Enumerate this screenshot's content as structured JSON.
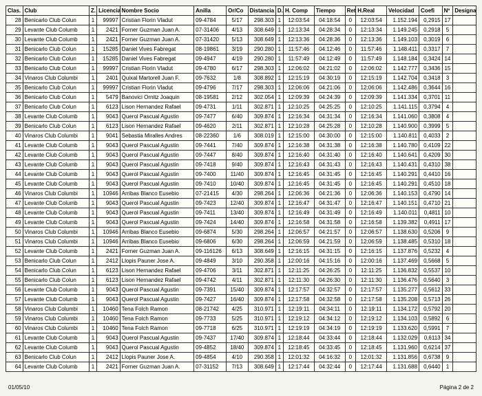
{
  "footer": {
    "left": "01/05/10",
    "right": "Página 2 de 2"
  },
  "headers": [
    "Clas.",
    "Club",
    "Z.",
    "Licencia",
    "Nombre Socio",
    "Anilla",
    "Or/Co",
    "Distancia",
    "D.",
    "H. Comp",
    "Tiempo",
    "Ret",
    "H.Real",
    "Velocidad",
    "Coefi",
    "Nº",
    "Designa"
  ],
  "rows": [
    [
      28,
      "Benicarlo Club Colun",
      1,
      99997,
      "Cristian Florin Vladut",
      "09-4784",
      "5/17",
      "298.303",
      1,
      "12:03:54",
      "04:18:54",
      0,
      "12:03:54",
      "1.152.194",
      "0,2915",
      17,
      ""
    ],
    [
      29,
      "Levante Club Columb",
      1,
      2421,
      "Forner Guzman Juan A.",
      "07-31406",
      "4/13",
      "308.649",
      1,
      "12:13:34",
      "04:28:34",
      0,
      "12:13:34",
      "1.149.245",
      "0,2918",
      5,
      ""
    ],
    [
      30,
      "Levante Club Columb",
      1,
      2421,
      "Forner Guzman Juan A.",
      "07-31420",
      "5/13",
      "308.649",
      1,
      "12:13:36",
      "04:28:36",
      0,
      "12:13:36",
      "1.149.103",
      "0,3019",
      6,
      ""
    ],
    [
      31,
      "Benicarlo Club Colun",
      1,
      15285,
      "Daniel Vives Fabregat",
      "08-19861",
      "3/19",
      "290.280",
      1,
      "11:57:46",
      "04:12:46",
      0,
      "11:57:46",
      "1.148.411",
      "0,3317",
      7,
      ""
    ],
    [
      32,
      "Benicarlo Club Colun",
      1,
      15285,
      "Daniel Vives Fabregat",
      "09-4947",
      "4/19",
      "290.280",
      1,
      "11:57:49",
      "04:12:49",
      0,
      "11:57:49",
      "1.148.184",
      "0,3424",
      14,
      ""
    ],
    [
      33,
      "Benicarlo Club Colun",
      1,
      99997,
      "Cristian Florin Vladut",
      "09-4780",
      "6/17",
      "298.303",
      1,
      "12:06:02",
      "04:21:02",
      0,
      "12:06:02",
      "1.142.777",
      "0,3436",
      15,
      ""
    ],
    [
      34,
      "Vinaros Club Columbi",
      1,
      2401,
      "Quixal Martorell Juan F.",
      "09-7632",
      "1/8",
      "308.892",
      1,
      "12:15:19",
      "04:30:19",
      0,
      "12:15:19",
      "1.142.704",
      "0,3418",
      3,
      ""
    ],
    [
      35,
      "Benicarlo Club Colun",
      1,
      99997,
      "Cristian Florin Vladut",
      "09-4796",
      "7/17",
      "298.303",
      1,
      "12:06:06",
      "04:21:06",
      0,
      "12:06:06",
      "1.142.486",
      "0,3644",
      16,
      ""
    ],
    [
      36,
      "Benicarlo Club Colun",
      1,
      5479,
      "Banovici Ornitz Joaquin",
      "08-19581",
      "2/12",
      "302.054",
      1,
      "12:09:39",
      "04:24:39",
      0,
      "12:09:39",
      "1.141.334",
      "0,3701",
      11,
      ""
    ],
    [
      37,
      "Benicarlo Club Colun",
      1,
      6123,
      "Lison Hernandez Rafael",
      "09-4731",
      "1/11",
      "302.871",
      1,
      "12:10:25",
      "04:25:25",
      0,
      "12:10:25",
      "1.141.115",
      "0,3794",
      4,
      ""
    ],
    [
      38,
      "Levante Club Columb",
      1,
      9043,
      "Querol Pascual Agustin",
      "09-7477",
      "6/40",
      "309.874",
      1,
      "12:16:34",
      "04:31:34",
      0,
      "12:16:34",
      "1.141.060",
      "0,3808",
      4,
      ""
    ],
    [
      39,
      "Benicarlo Club Colun",
      1,
      6123,
      "Lison Hernandez Rafael",
      "09-4620",
      "2/11",
      "302.871",
      1,
      "12:10:28",
      "04:25:28",
      0,
      "12:10:28",
      "1.140.900",
      "0,3999",
      5,
      ""
    ],
    [
      40,
      "Vinaros Club Columbi",
      1,
      9041,
      "Sebastia Miralles Andres",
      "08-22360",
      "1/6",
      "308.019",
      1,
      "12:15:00",
      "04:30:00",
      0,
      "12:15:00",
      "1.140.811",
      "0,4033",
      2,
      ""
    ],
    [
      41,
      "Levante Club Columb",
      1,
      9043,
      "Querol Pascual Agustin",
      "09-7441",
      "7/40",
      "309.874",
      1,
      "12:16:38",
      "04:31:38",
      0,
      "12:16:38",
      "1.140.780",
      "0,4109",
      22,
      ""
    ],
    [
      42,
      "Levante Club Columb",
      1,
      9043,
      "Querol Pascual Agustin",
      "09-7447",
      "8/40",
      "309.874",
      1,
      "12:16:40",
      "04:31:40",
      0,
      "12:16:40",
      "1.140.641",
      "0,4209",
      30,
      ""
    ],
    [
      43,
      "Levante Club Columb",
      1,
      9043,
      "Querol Pascual Agustin",
      "09-7418",
      "9/40",
      "309.874",
      1,
      "12:16:43",
      "04:31:43",
      0,
      "12:16:43",
      "1.140.431",
      "0,4310",
      38,
      ""
    ],
    [
      44,
      "Levante Club Columb",
      1,
      9043,
      "Querol Pascual Agustin",
      "09-7400",
      "11/40",
      "309.874",
      1,
      "12:16:45",
      "04:31:45",
      0,
      "12:16:45",
      "1.140.291",
      "0,4410",
      16,
      ""
    ],
    [
      45,
      "Levante Club Columb",
      1,
      9043,
      "Querol Pascual Agustin",
      "09-7410",
      "10/40",
      "309.874",
      1,
      "12:16:45",
      "04:31:45",
      0,
      "12:16:45",
      "1.140.291",
      "0,4510",
      18,
      ""
    ],
    [
      46,
      "Vinaros Club Columbi",
      1,
      10946,
      "Arribas Blanco Eusebio",
      "07-21415",
      "4/30",
      "298.264",
      1,
      "12:06:36",
      "04:21:36",
      0,
      "12:06:36",
      "1.140.153",
      "0,4790",
      14,
      ""
    ],
    [
      47,
      "Levante Club Columb",
      1,
      9043,
      "Querol Pascual Agustin",
      "09-7423",
      "12/40",
      "309.874",
      1,
      "12:16:47",
      "04:31:47",
      0,
      "12:16:47",
      "1.140.151",
      "0,4710",
      21,
      ""
    ],
    [
      48,
      "Levante Club Columb",
      1,
      9043,
      "Querol Pascual Agustin",
      "09-7411",
      "13/40",
      "309.874",
      1,
      "12:16:49",
      "04:31:49",
      0,
      "12:16:49",
      "1.140.011",
      "0,4811",
      10,
      ""
    ],
    [
      49,
      "Levante Club Columb",
      1,
      9043,
      "Querol Pascual Agustin",
      "09-7424",
      "14/40",
      "309.874",
      1,
      "12:16:58",
      "04:31:58",
      0,
      "12:16:58",
      "1.139.382",
      "0,4911",
      17,
      ""
    ],
    [
      50,
      "Vinaros Club Columbi",
      1,
      10946,
      "Arribas Blanco Eusebio",
      "09-6874",
      "5/30",
      "298.264",
      1,
      "12:06:57",
      "04:21:57",
      0,
      "12:06:57",
      "1.138.630",
      "0,5206",
      9,
      ""
    ],
    [
      51,
      "Vinaros Club Columbi",
      1,
      10946,
      "Arribas Blanco Eusebio",
      "09-6806",
      "6/30",
      "298.264",
      1,
      "12:06:59",
      "04:21:59",
      0,
      "12:06:59",
      "1.138.485",
      "0,5310",
      18,
      ""
    ],
    [
      52,
      "Levante Club Columb",
      1,
      2421,
      "Forner Guzman Juan A.",
      "09-116126",
      "6/13",
      "308.649",
      1,
      "12:16:15",
      "04:31:15",
      0,
      "12:16:15",
      "1.137.876",
      "0,5232",
      4,
      ""
    ],
    [
      53,
      "Benicarlo Club Colun",
      1,
      2412,
      "Llopis Pauner Jose A.",
      "09-4849",
      "3/10",
      "290.358",
      1,
      "12:00:16",
      "04:15:16",
      0,
      "12:00:16",
      "1.137.469",
      "0,5668",
      5,
      ""
    ],
    [
      54,
      "Benicarlo Club Colun",
      1,
      6123,
      "Lison Hernandez Rafael",
      "09-4706",
      "3/11",
      "302.871",
      1,
      "12:11:25",
      "04:26:25",
      0,
      "12:11:25",
      "1.136.832",
      "0,5537",
      10,
      ""
    ],
    [
      55,
      "Benicarlo Club Colun",
      1,
      6123,
      "Lison Hernandez Rafael",
      "09-4742",
      "4/11",
      "302.871",
      1,
      "12:11:30",
      "04:26:30",
      0,
      "12:11:30",
      "1.136.476",
      "0,5640",
      3,
      ""
    ],
    [
      56,
      "Levante Club Columb",
      1,
      9043,
      "Querol Pascual Agustin",
      "09-7391",
      "15/40",
      "309.874",
      1,
      "12:17:57",
      "04:32:57",
      0,
      "12:17:57",
      "1.135.277",
      "0,5612",
      33,
      ""
    ],
    [
      57,
      "Levante Club Columb",
      1,
      9043,
      "Querol Pascual Agustin",
      "09-7427",
      "16/40",
      "309.874",
      1,
      "12:17:58",
      "04:32:58",
      0,
      "12:17:58",
      "1.135.208",
      "0,5713",
      26,
      ""
    ],
    [
      58,
      "Vinaros Club Columbi",
      1,
      10460,
      "Tena Folch Ramon",
      "08-21742",
      "4/25",
      "310.971",
      1,
      "12:19:11",
      "04:34:11",
      0,
      "12:19:11",
      "1.134.172",
      "0,5792",
      20,
      ""
    ],
    [
      59,
      "Vinaros Club Columbi",
      1,
      10460,
      "Tena Folch Ramon",
      "09-7733",
      "5/25",
      "310.971",
      1,
      "12:19:12",
      "04:34:12",
      0,
      "12:19:12",
      "1.134.103",
      "0,5892",
      6,
      ""
    ],
    [
      60,
      "Vinaros Club Columbi",
      1,
      10460,
      "Tena Folch Ramon",
      "09-7718",
      "6/25",
      "310.971",
      1,
      "12:19:19",
      "04:34:19",
      0,
      "12:19:19",
      "1.133.620",
      "0,5991",
      7,
      ""
    ],
    [
      61,
      "Levante Club Columb",
      1,
      9043,
      "Querol Pascual Agustin",
      "09-7437",
      "17/40",
      "309.874",
      1,
      "12:18:44",
      "04:33:44",
      0,
      "12:18:44",
      "1.132.029",
      "0,6113",
      34,
      ""
    ],
    [
      62,
      "Levante Club Columb",
      1,
      9043,
      "Querol Pascual Agustin",
      "09-4852",
      "18/40",
      "309.874",
      1,
      "12:18:45",
      "04:33:45",
      0,
      "12:18:45",
      "1.131.960",
      "0,6214",
      37,
      ""
    ],
    [
      63,
      "Benicarlo Club Colun",
      1,
      2412,
      "Llopis Pauner Jose A.",
      "09-4854",
      "4/10",
      "290.358",
      1,
      "12:01:32",
      "04:16:32",
      0,
      "12:01:32",
      "1.131.856",
      "0,6738",
      9,
      ""
    ],
    [
      64,
      "Levante Club Columb",
      1,
      2421,
      "Forner Guzman Juan A.",
      "07-31152",
      "7/13",
      "308.649",
      1,
      "12:17:44",
      "04:32:44",
      0,
      "12:17:44",
      "1.131.688",
      "0,6440",
      1,
      ""
    ]
  ]
}
